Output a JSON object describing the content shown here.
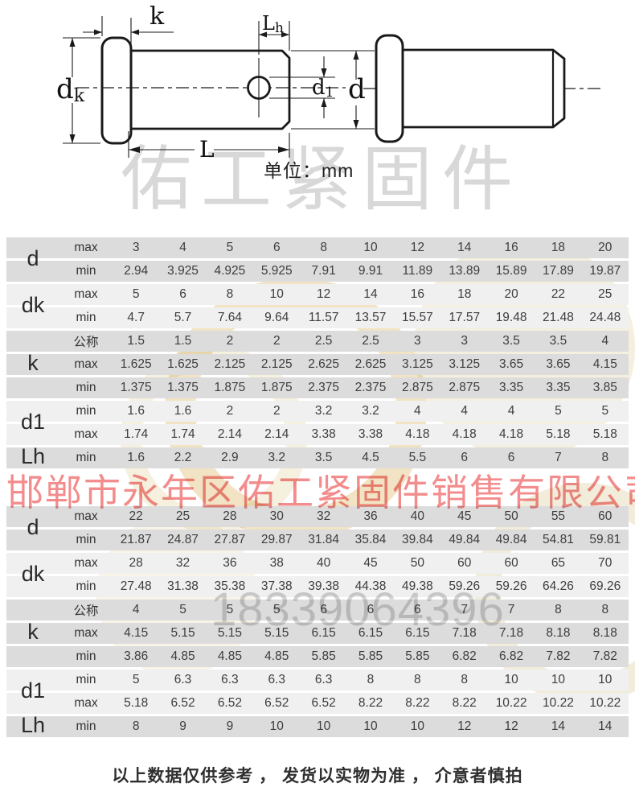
{
  "drawing": {
    "labels": {
      "k": "k",
      "L": "L",
      "d": "d",
      "dk_main": "d",
      "dk_sub": "k",
      "d1_main": "d",
      "d1_sub": "1",
      "Lh_main": "L",
      "Lh_sub": "h"
    },
    "unit_note": "单位：mm"
  },
  "watermarks": {
    "brand": "佑工紧固件",
    "company": "邯郸市永年区佑工紧固件销售有限公司",
    "phone": "18339064396"
  },
  "colors": {
    "row_dark": "#dcdcdc",
    "row_light": "#f0f0f0",
    "watermark_red": "#f28080",
    "watermark_gold": "#cfa13b",
    "watermark_grey": "#cfcfcf"
  },
  "table": {
    "sections": [
      {
        "groups": [
          {
            "label": "d",
            "shade": "dark",
            "rows": [
              {
                "sub": "max",
                "values": [
                  "3",
                  "4",
                  "5",
                  "6",
                  "8",
                  "10",
                  "12",
                  "14",
                  "16",
                  "18",
                  "20"
                ]
              },
              {
                "sub": "min",
                "values": [
                  "2.94",
                  "3.925",
                  "4.925",
                  "5.925",
                  "7.91",
                  "9.91",
                  "11.89",
                  "13.89",
                  "15.89",
                  "17.89",
                  "19.87"
                ]
              }
            ]
          },
          {
            "label": "dk",
            "shade": "light",
            "rows": [
              {
                "sub": "max",
                "values": [
                  "5",
                  "6",
                  "8",
                  "10",
                  "12",
                  "14",
                  "16",
                  "18",
                  "20",
                  "22",
                  "25"
                ]
              },
              {
                "sub": "min",
                "values": [
                  "4.7",
                  "5.7",
                  "7.64",
                  "9.64",
                  "11.57",
                  "13.57",
                  "15.57",
                  "17.57",
                  "19.48",
                  "21.48",
                  "24.48"
                ]
              }
            ]
          },
          {
            "label": "k",
            "shade": "dark",
            "rows": [
              {
                "sub": "公称",
                "values": [
                  "1.5",
                  "1.5",
                  "2",
                  "2",
                  "2.5",
                  "2.5",
                  "3",
                  "3",
                  "3.5",
                  "3.5",
                  "4"
                ]
              },
              {
                "sub": "max",
                "values": [
                  "1.625",
                  "1.625",
                  "2.125",
                  "2.125",
                  "2.625",
                  "2.625",
                  "3.125",
                  "3.125",
                  "3.65",
                  "3.65",
                  "4.15"
                ]
              },
              {
                "sub": "min",
                "values": [
                  "1.375",
                  "1.375",
                  "1.875",
                  "1.875",
                  "2.375",
                  "2.375",
                  "2.875",
                  "2.875",
                  "3.35",
                  "3.35",
                  "3.85"
                ]
              }
            ]
          },
          {
            "label": "d1",
            "shade": "light",
            "rows": [
              {
                "sub": "min",
                "values": [
                  "1.6",
                  "1.6",
                  "2",
                  "2",
                  "3.2",
                  "3.2",
                  "4",
                  "4",
                  "4",
                  "5",
                  "5"
                ]
              },
              {
                "sub": "max",
                "values": [
                  "1.74",
                  "1.74",
                  "2.14",
                  "2.14",
                  "3.38",
                  "3.38",
                  "4.18",
                  "4.18",
                  "4.18",
                  "5.18",
                  "5.18"
                ]
              }
            ]
          },
          {
            "label": "Lh",
            "shade": "dark",
            "rows": [
              {
                "sub": "min",
                "values": [
                  "1.6",
                  "2.2",
                  "2.9",
                  "3.2",
                  "3.5",
                  "4.5",
                  "5.5",
                  "6",
                  "6",
                  "7",
                  "8"
                ]
              }
            ]
          }
        ]
      },
      {
        "groups": [
          {
            "label": "d",
            "shade": "dark",
            "rows": [
              {
                "sub": "max",
                "values": [
                  "22",
                  "25",
                  "28",
                  "30",
                  "32",
                  "36",
                  "40",
                  "45",
                  "50",
                  "55",
                  "60"
                ]
              },
              {
                "sub": "min",
                "values": [
                  "21.87",
                  "24.87",
                  "27.87",
                  "29.87",
                  "31.84",
                  "35.84",
                  "39.84",
                  "49.84",
                  "49.84",
                  "54.81",
                  "59.81"
                ]
              }
            ]
          },
          {
            "label": "dk",
            "shade": "light",
            "rows": [
              {
                "sub": "max",
                "values": [
                  "28",
                  "32",
                  "36",
                  "38",
                  "40",
                  "45",
                  "50",
                  "60",
                  "60",
                  "65",
                  "70"
                ]
              },
              {
                "sub": "min",
                "values": [
                  "27.48",
                  "31.38",
                  "35.38",
                  "37.38",
                  "39.38",
                  "44.38",
                  "49.38",
                  "59.26",
                  "59.26",
                  "64.26",
                  "69.26"
                ]
              }
            ]
          },
          {
            "label": "k",
            "shade": "dark",
            "rows": [
              {
                "sub": "公称",
                "values": [
                  "4",
                  "5",
                  "5",
                  "5",
                  "6",
                  "6",
                  "6",
                  "7",
                  "7",
                  "8",
                  "8"
                ]
              },
              {
                "sub": "max",
                "values": [
                  "4.15",
                  "5.15",
                  "5.15",
                  "5.15",
                  "6.15",
                  "6.15",
                  "6.15",
                  "7.18",
                  "7.18",
                  "8.18",
                  "8.18"
                ]
              },
              {
                "sub": "min",
                "values": [
                  "3.86",
                  "4.85",
                  "4.85",
                  "4.85",
                  "5.85",
                  "5.85",
                  "5.85",
                  "6.82",
                  "6.82",
                  "7.82",
                  "7.82"
                ]
              }
            ]
          },
          {
            "label": "d1",
            "shade": "light",
            "rows": [
              {
                "sub": "min",
                "values": [
                  "5",
                  "6.3",
                  "6.3",
                  "6.3",
                  "6.3",
                  "8",
                  "8",
                  "8",
                  "10",
                  "10",
                  "10"
                ]
              },
              {
                "sub": "max",
                "values": [
                  "5.18",
                  "6.52",
                  "6.52",
                  "6.52",
                  "6.52",
                  "8.22",
                  "8.22",
                  "8.22",
                  "10.22",
                  "10.22",
                  "10.22"
                ]
              }
            ]
          },
          {
            "label": "Lh",
            "shade": "dark",
            "rows": [
              {
                "sub": "min",
                "values": [
                  "8",
                  "9",
                  "9",
                  "10",
                  "10",
                  "10",
                  "10",
                  "12",
                  "12",
                  "14",
                  "14"
                ]
              }
            ]
          }
        ]
      }
    ]
  },
  "footer": {
    "note": "以上数据仅供参考 ，  发货以实物为准 ，  介意者慎拍"
  }
}
